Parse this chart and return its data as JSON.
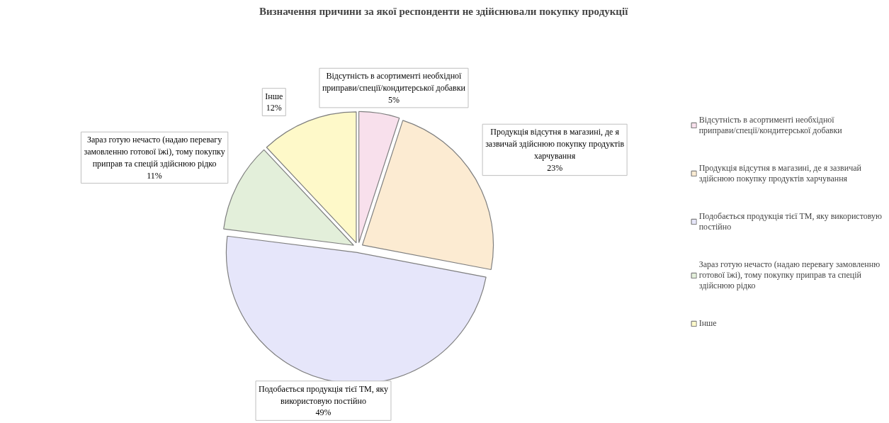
{
  "chart_data": {
    "type": "pie",
    "title": "Визначення причини  за якої респонденти не здійснювали покупку продукції",
    "categories": [
      "Відсутність в асортименті необхідної приправи/спеції/кондитерської добавки",
      "Продукція відсутня в магазині, де я зазвичай здійснюю покупку продуктів харчування",
      "Подобається продукція тієї ТМ, яку використовую постійно",
      "Зараз готую нечасто (надаю перевагу замовленню готової їжі), тому покупку приправ та спецій здійснюю рідко",
      "Інше"
    ],
    "values": [
      5,
      23,
      49,
      11,
      12
    ],
    "colors": [
      "#f8e0ec",
      "#fcebd2",
      "#e6e6fa",
      "#e3efda",
      "#fef9c9"
    ],
    "value_labels": [
      "5%",
      "23%",
      "49%",
      "11%",
      "12%"
    ],
    "legend": "right"
  }
}
